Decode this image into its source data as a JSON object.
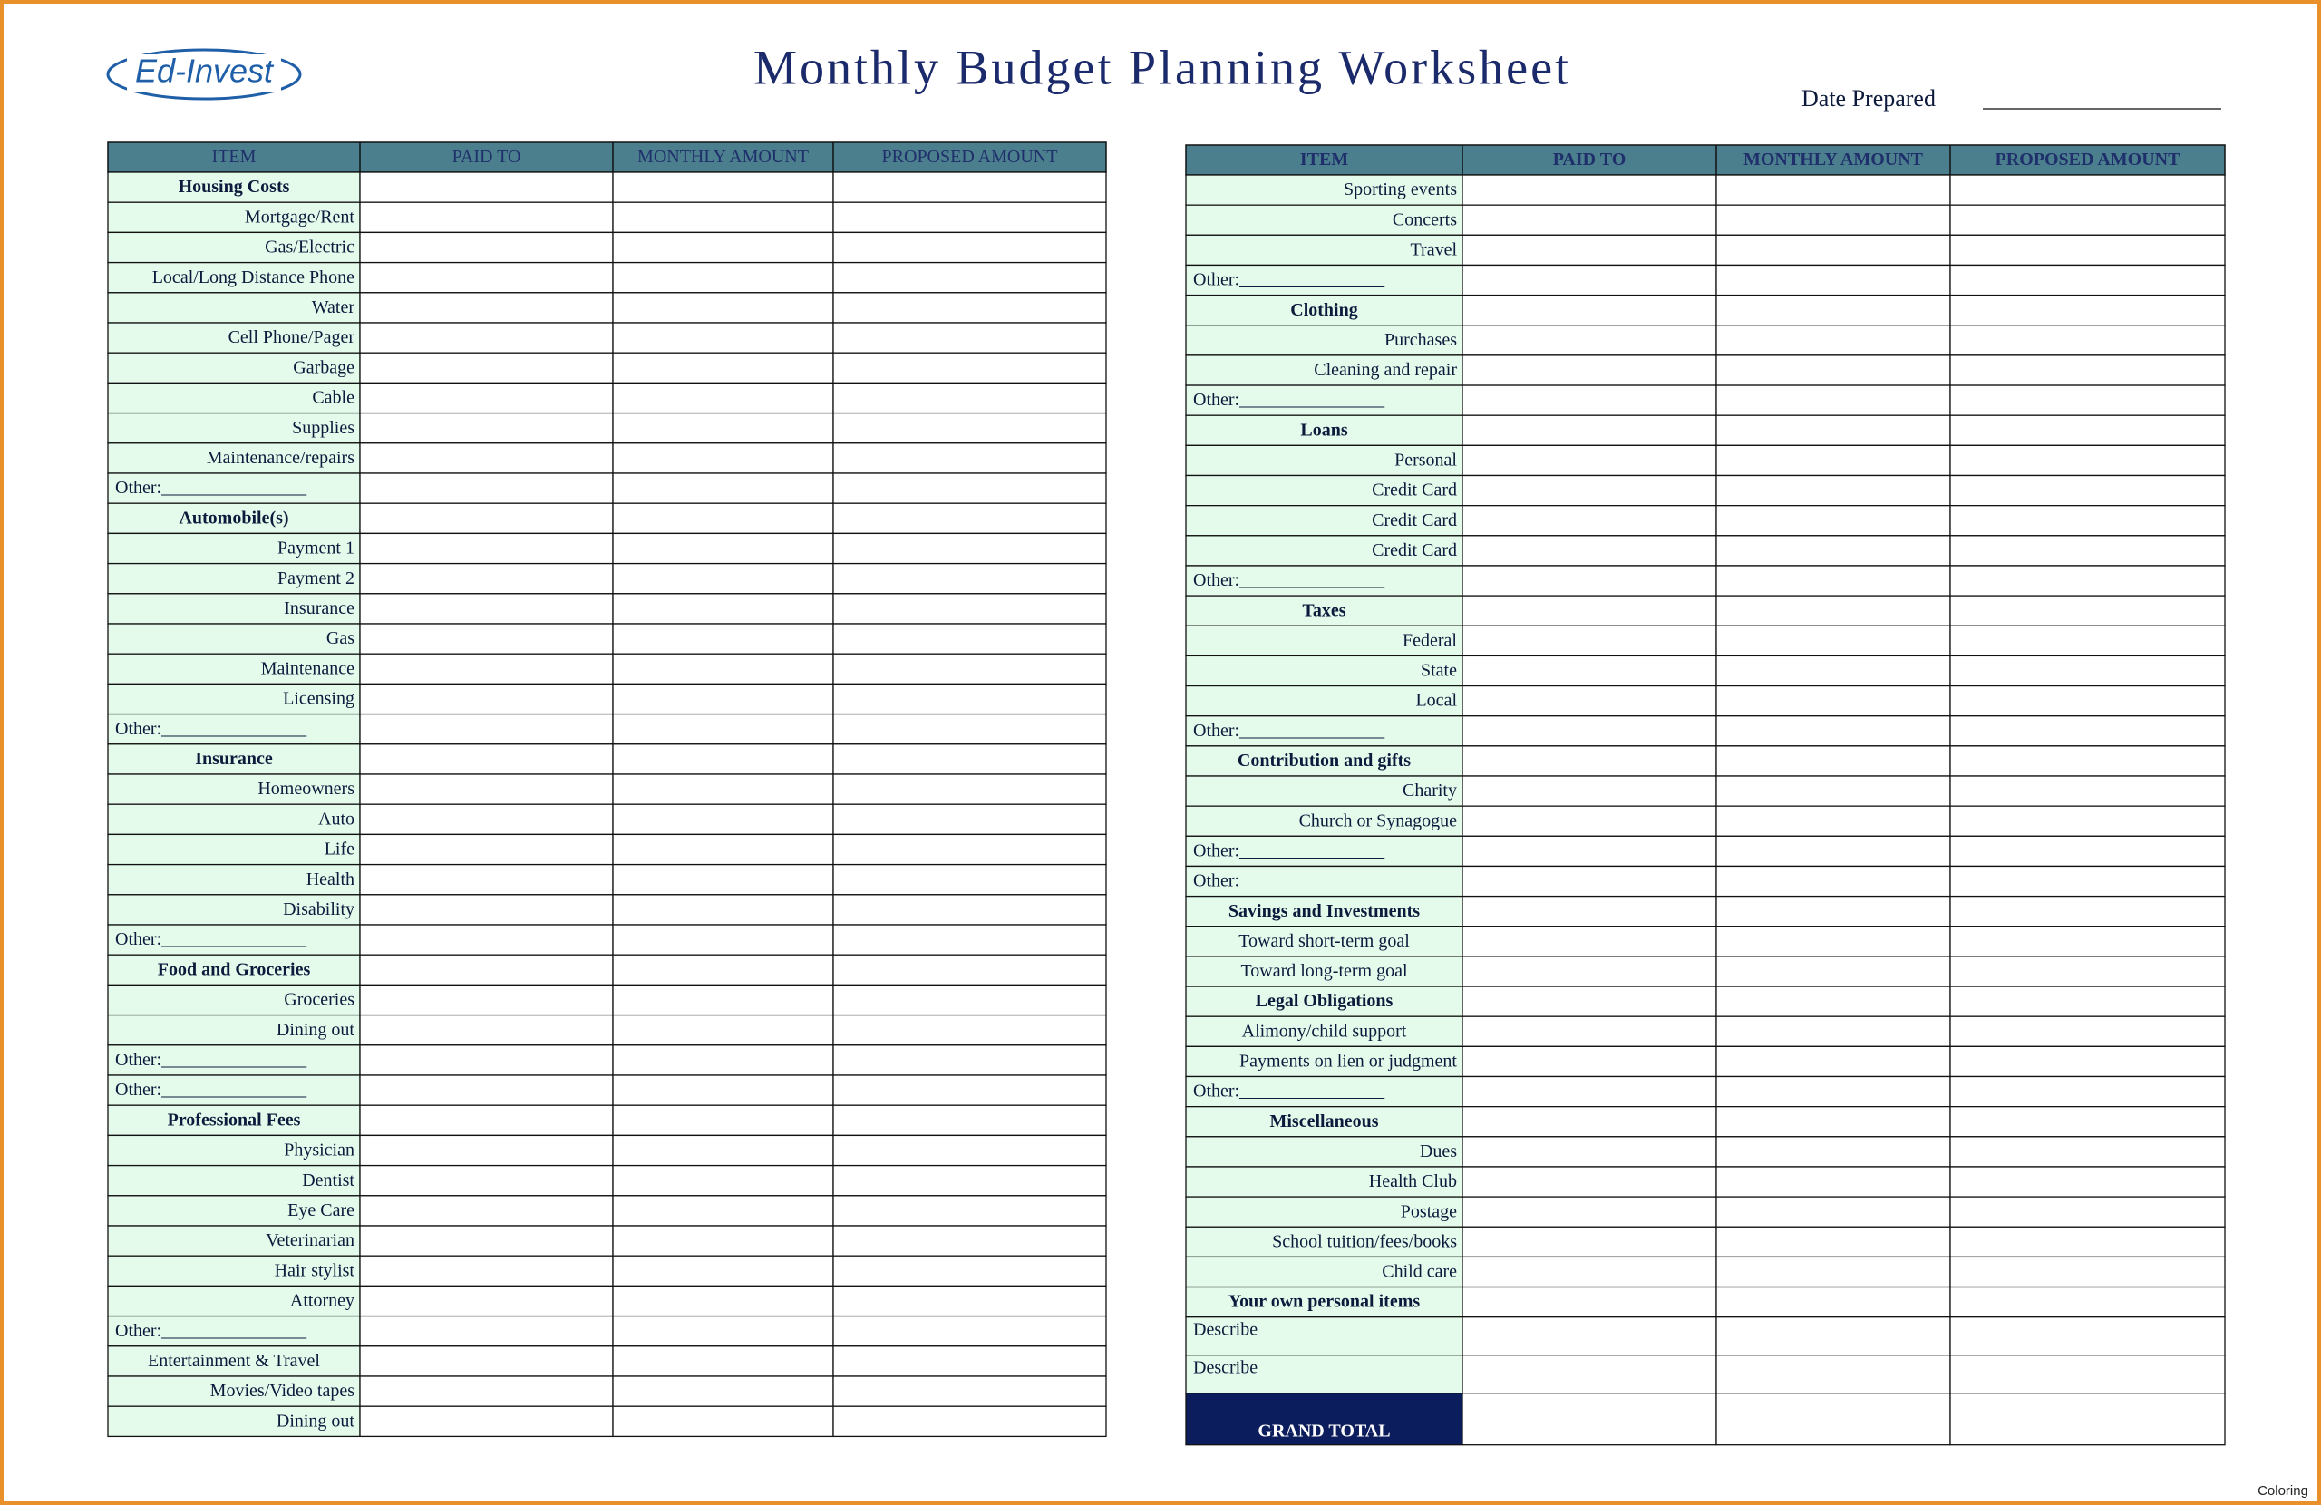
{
  "header": {
    "logo": "Ed-Invest",
    "title": "Monthly Budget Planning Worksheet",
    "date_label": "Date Prepared",
    "footer": "Coloring"
  },
  "tables": [
    {
      "columns": [
        "ITEM",
        "PAID TO",
        "MONTHLY AMOUNT",
        "PROPOSED AMOUNT"
      ],
      "header_bold": false,
      "rows": [
        {
          "text": "Housing Costs",
          "style": "section"
        },
        {
          "text": "Mortgage/Rent",
          "style": "item"
        },
        {
          "text": "Gas/Electric",
          "style": "item"
        },
        {
          "text": "Local/Long Distance Phone",
          "style": "item"
        },
        {
          "text": "Water",
          "style": "item"
        },
        {
          "text": "Cell Phone/Pager",
          "style": "item"
        },
        {
          "text": "Garbage",
          "style": "item"
        },
        {
          "text": "Cable",
          "style": "item"
        },
        {
          "text": "Supplies",
          "style": "item"
        },
        {
          "text": "Maintenance/repairs",
          "style": "item"
        },
        {
          "text": "Other:________________",
          "style": "other"
        },
        {
          "text": "Automobile(s)",
          "style": "section"
        },
        {
          "text": "Payment 1",
          "style": "item"
        },
        {
          "text": "Payment 2",
          "style": "item"
        },
        {
          "text": "Insurance",
          "style": "item"
        },
        {
          "text": "Gas",
          "style": "item"
        },
        {
          "text": "Maintenance",
          "style": "item"
        },
        {
          "text": "Licensing",
          "style": "item"
        },
        {
          "text": "Other:________________",
          "style": "other"
        },
        {
          "text": "Insurance",
          "style": "section"
        },
        {
          "text": "Homeowners",
          "style": "item"
        },
        {
          "text": "Auto",
          "style": "item"
        },
        {
          "text": "Life",
          "style": "item"
        },
        {
          "text": "Health",
          "style": "item"
        },
        {
          "text": "Disability",
          "style": "item"
        },
        {
          "text": "Other:________________",
          "style": "other"
        },
        {
          "text": "Food and Groceries",
          "style": "section"
        },
        {
          "text": "Groceries",
          "style": "item"
        },
        {
          "text": "Dining out",
          "style": "item"
        },
        {
          "text": "Other:________________",
          "style": "other"
        },
        {
          "text": "Other:________________",
          "style": "other"
        },
        {
          "text": "Professional Fees",
          "style": "section"
        },
        {
          "text": "Physician",
          "style": "item"
        },
        {
          "text": "Dentist",
          "style": "item"
        },
        {
          "text": "Eye Care",
          "style": "item"
        },
        {
          "text": "Veterinarian",
          "style": "item"
        },
        {
          "text": "Hair stylist",
          "style": "item"
        },
        {
          "text": "Attorney",
          "style": "item"
        },
        {
          "text": "Other:________________",
          "style": "other"
        },
        {
          "text": "Entertainment & Travel",
          "style": "center"
        },
        {
          "text": "Movies/Video tapes",
          "style": "item"
        },
        {
          "text": "Dining out",
          "style": "item"
        }
      ]
    },
    {
      "columns": [
        "ITEM",
        "PAID TO",
        "MONTHLY AMOUNT",
        "PROPOSED AMOUNT"
      ],
      "header_bold": true,
      "rows": [
        {
          "text": "Sporting events",
          "style": "item"
        },
        {
          "text": "Concerts",
          "style": "item"
        },
        {
          "text": "Travel",
          "style": "item"
        },
        {
          "text": "Other:________________",
          "style": "other"
        },
        {
          "text": "Clothing",
          "style": "section"
        },
        {
          "text": "Purchases",
          "style": "item"
        },
        {
          "text": "Cleaning and repair",
          "style": "item"
        },
        {
          "text": "Other:________________",
          "style": "other"
        },
        {
          "text": "Loans",
          "style": "section"
        },
        {
          "text": "Personal",
          "style": "item"
        },
        {
          "text": "Credit Card",
          "style": "item"
        },
        {
          "text": "Credit Card",
          "style": "item"
        },
        {
          "text": "Credit Card",
          "style": "item"
        },
        {
          "text": "Other:________________",
          "style": "other"
        },
        {
          "text": "Taxes",
          "style": "section"
        },
        {
          "text": "Federal",
          "style": "item"
        },
        {
          "text": "State",
          "style": "item"
        },
        {
          "text": "Local",
          "style": "item"
        },
        {
          "text": "Other:________________",
          "style": "other"
        },
        {
          "text": "Contribution and gifts",
          "style": "section"
        },
        {
          "text": "Charity",
          "style": "item"
        },
        {
          "text": "Church or Synagogue",
          "style": "item"
        },
        {
          "text": "Other:________________",
          "style": "other"
        },
        {
          "text": "Other:________________",
          "style": "other"
        },
        {
          "text": "Savings and Investments",
          "style": "section"
        },
        {
          "text": "Toward short-term goal",
          "style": "center"
        },
        {
          "text": "Toward long-term goal",
          "style": "center"
        },
        {
          "text": "Legal Obligations",
          "style": "section"
        },
        {
          "text": "Alimony/child support",
          "style": "center"
        },
        {
          "text": "Payments on lien or judgment",
          "style": "item"
        },
        {
          "text": "Other:________________",
          "style": "other"
        },
        {
          "text": "Miscellaneous",
          "style": "section"
        },
        {
          "text": "Dues",
          "style": "item"
        },
        {
          "text": "Health Club",
          "style": "item"
        },
        {
          "text": "Postage",
          "style": "item"
        },
        {
          "text": "School tuition/fees/books",
          "style": "item"
        },
        {
          "text": "Child care",
          "style": "item"
        },
        {
          "text": "Your own personal items",
          "style": "section"
        },
        {
          "text": "Describe",
          "style": "describe"
        },
        {
          "text": "Describe",
          "style": "describe"
        },
        {
          "text": "GRAND TOTAL",
          "style": "total"
        }
      ]
    }
  ]
}
